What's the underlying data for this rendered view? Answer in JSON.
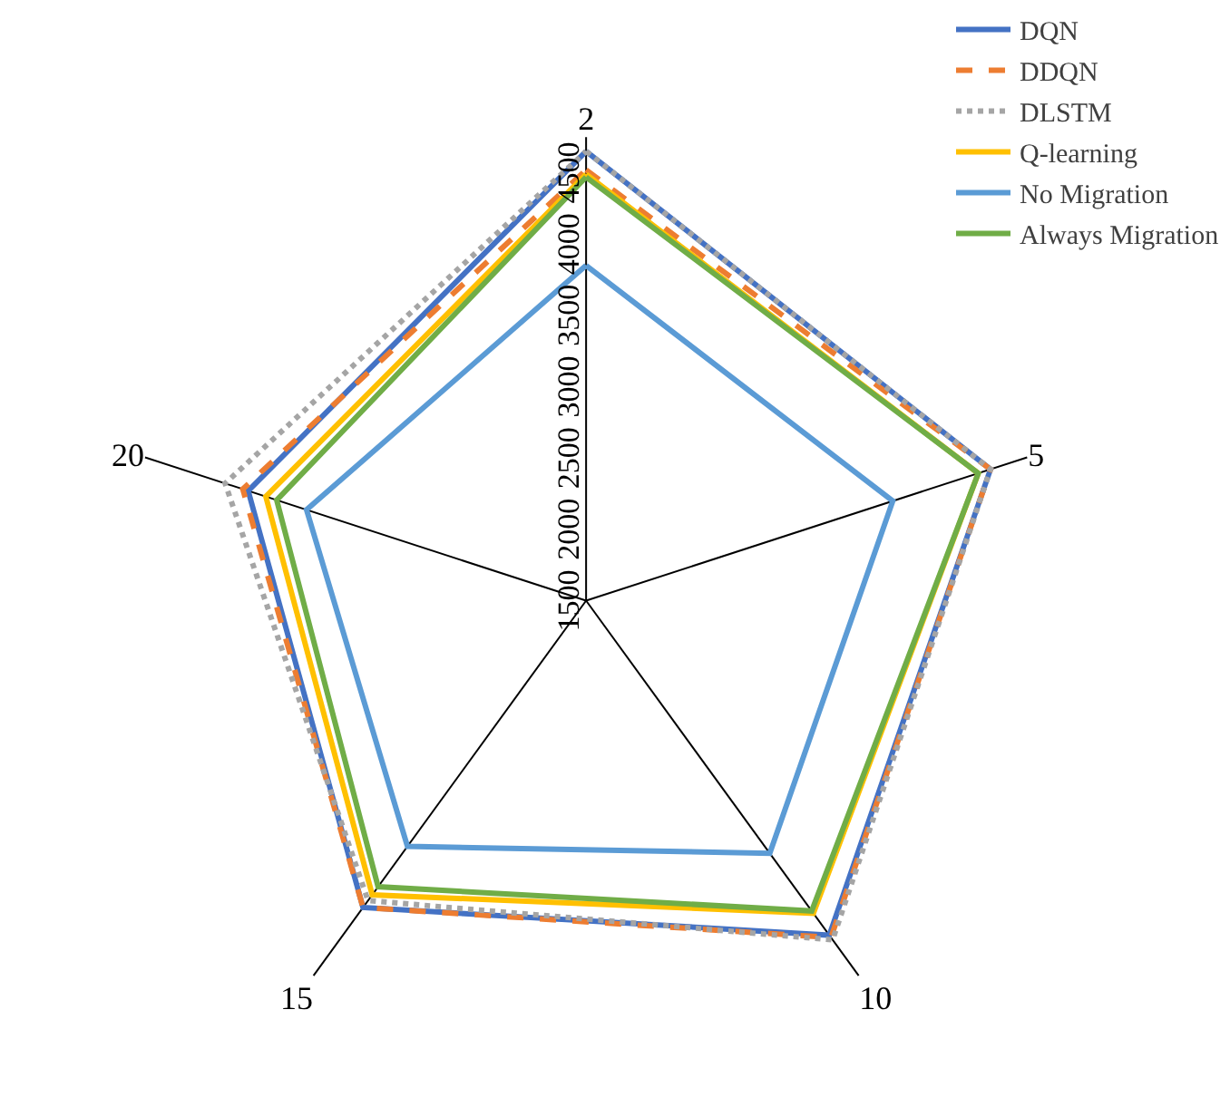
{
  "chart_data": {
    "type": "radar",
    "categories": [
      "2",
      "5",
      "10",
      "15",
      "20"
    ],
    "series": [
      {
        "name": "DQN",
        "color": "#4472c4",
        "line_style": "solid",
        "values": [
          4650,
          4480,
          4400,
          4160,
          3990
        ]
      },
      {
        "name": "DDQN",
        "color": "#ed7d31",
        "line_style": "dashed",
        "values": [
          4520,
          4480,
          4420,
          4160,
          4030
        ]
      },
      {
        "name": "DLSTM",
        "color": "#a5a5a5",
        "line_style": "dotted",
        "values": [
          4650,
          4480,
          4440,
          4100,
          4160
        ]
      },
      {
        "name": "Q-learning",
        "color": "#ffc000",
        "line_style": "solid",
        "values": [
          4490,
          4390,
          4210,
          4050,
          3860
        ]
      },
      {
        "name": "No Migration",
        "color": "#5b9bd5",
        "line_style": "solid",
        "values": [
          3850,
          3760,
          3690,
          3630,
          3560
        ]
      },
      {
        "name": "Always Migration",
        "color": "#70ad47",
        "line_style": "solid",
        "values": [
          4470,
          4390,
          4190,
          3980,
          3780
        ]
      }
    ],
    "ylim": [
      1500,
      4750
    ],
    "yticks": [
      1500,
      2000,
      2500,
      3000,
      3500,
      4000,
      4500
    ],
    "grid": "x",
    "legend": "top right",
    "marker": "none"
  }
}
